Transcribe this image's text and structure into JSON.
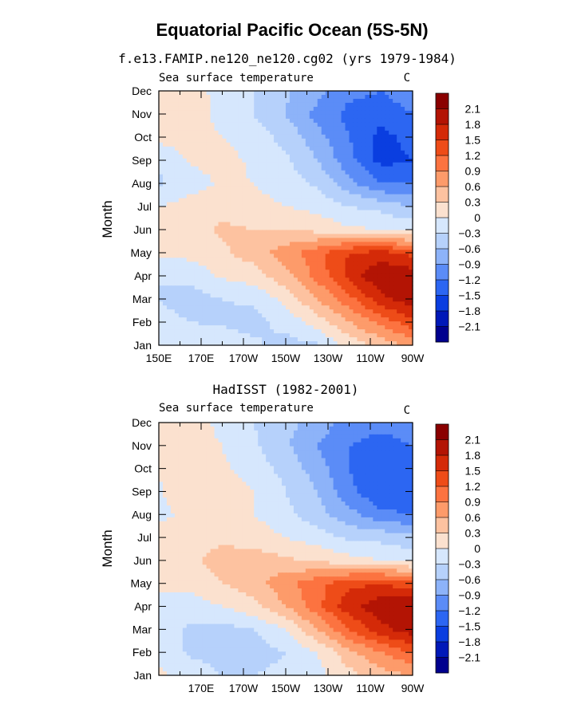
{
  "figure_title": "Equatorial Pacific Ocean (5S-5N)",
  "colors": {
    "palette": [
      "#00008e",
      "#0018b8",
      "#0a3ee0",
      "#2c66f2",
      "#5b8cf7",
      "#8db3f9",
      "#b6d1fb",
      "#d6e7fd",
      "#fbe1cf",
      "#fdc2a0",
      "#fd9b6a",
      "#fc7340",
      "#ee4c18",
      "#d42a08",
      "#b31404",
      "#8a0000"
    ]
  },
  "chart_data": [
    {
      "type": "heatmap",
      "title": "f.e13.FAMIP.ne120_ne120.cg02 (yrs 1979-1984)",
      "left_label": "Sea surface temperature",
      "units": "C",
      "ylabel": "Month",
      "xlabel": "",
      "x_tick_labels": [
        "150E",
        "170E",
        "170W",
        "150W",
        "130W",
        "110W",
        "90W"
      ],
      "x_range_deg_east": [
        150,
        270
      ],
      "y_tick_labels": [
        "Jan",
        "Feb",
        "Mar",
        "Apr",
        "May",
        "Jun",
        "Jul",
        "Aug",
        "Sep",
        "Oct",
        "Nov",
        "Dec"
      ],
      "contour_levels": [
        -2.1,
        -1.8,
        -1.5,
        -1.2,
        -0.9,
        -0.6,
        -0.3,
        0,
        0.3,
        0.6,
        0.9,
        1.2,
        1.5,
        1.8,
        2.1
      ],
      "colorbar_labels": [
        "2.1",
        "1.8",
        "1.5",
        "1.2",
        "0.9",
        "0.6",
        "0.3",
        "0",
        "−0.3",
        "−0.6",
        "−0.9",
        "−1.2",
        "−1.5",
        "−1.8",
        "−2.1"
      ],
      "x_grid_deg": [
        150,
        165,
        180,
        195,
        210,
        225,
        240,
        255,
        270
      ],
      "values": [
        [
          -0.1,
          -0.1,
          -0.1,
          -0.25,
          -0.4,
          -0.35,
          0.1,
          0.4,
          0.7
        ],
        [
          -0.2,
          -0.3,
          -0.35,
          -0.4,
          -0.2,
          0.15,
          0.6,
          1.0,
          1.4
        ],
        [
          -0.3,
          -0.45,
          -0.3,
          -0.25,
          0.1,
          0.6,
          1.1,
          1.7,
          2.0
        ],
        [
          -0.3,
          -0.2,
          0.05,
          0.15,
          0.5,
          1.0,
          1.6,
          2.1,
          2.0
        ],
        [
          0.05,
          0.1,
          0.25,
          0.45,
          0.75,
          1.1,
          1.5,
          1.6,
          1.4
        ],
        [
          0.1,
          0.2,
          0.35,
          0.3,
          0.3,
          0.2,
          0.05,
          0.0,
          -0.1
        ],
        [
          0.0,
          0.15,
          0.2,
          0.1,
          0.0,
          -0.1,
          -0.3,
          -0.4,
          -0.6
        ],
        [
          -0.35,
          -0.15,
          0.05,
          0.0,
          -0.15,
          -0.35,
          -0.8,
          -1.2,
          -1.2
        ],
        [
          -0.25,
          0.05,
          0.1,
          -0.05,
          -0.25,
          -0.6,
          -1.1,
          -1.6,
          -1.5
        ],
        [
          0.1,
          0.1,
          0.0,
          -0.15,
          -0.4,
          -0.8,
          -1.2,
          -1.6,
          -1.4
        ],
        [
          0.15,
          0.15,
          -0.1,
          -0.3,
          -0.6,
          -1.0,
          -1.3,
          -1.4,
          -1.2
        ],
        [
          0.2,
          0.25,
          -0.2,
          -0.3,
          -0.55,
          -0.8,
          -1.1,
          -1.2,
          -1.0
        ]
      ]
    },
    {
      "type": "heatmap",
      "title": "HadISST (1982-2001)",
      "left_label": "Sea surface temperature",
      "units": "C",
      "ylabel": "Month",
      "xlabel": "",
      "x_tick_labels": [
        "170E",
        "170W",
        "150W",
        "130W",
        "110W",
        "90W"
      ],
      "x_range_deg_east": [
        150,
        270
      ],
      "y_tick_labels": [
        "Jan",
        "Feb",
        "Mar",
        "Apr",
        "May",
        "Jun",
        "Jul",
        "Aug",
        "Sep",
        "Oct",
        "Nov",
        "Dec"
      ],
      "contour_levels": [
        -2.1,
        -1.8,
        -1.5,
        -1.2,
        -0.9,
        -0.6,
        -0.3,
        0,
        0.3,
        0.6,
        0.9,
        1.2,
        1.5,
        1.8,
        2.1
      ],
      "colorbar_labels": [
        "2.1",
        "1.8",
        "1.5",
        "1.2",
        "0.9",
        "0.6",
        "0.3",
        "0",
        "−0.3",
        "−0.6",
        "−0.9",
        "−1.2",
        "−1.5",
        "−1.8",
        "−2.1"
      ],
      "x_grid_deg": [
        150,
        165,
        180,
        195,
        210,
        225,
        240,
        255,
        270
      ],
      "values": [
        [
          0.05,
          -0.1,
          -0.3,
          -0.3,
          -0.2,
          -0.1,
          0.2,
          0.45,
          0.6
        ],
        [
          -0.1,
          -0.35,
          -0.45,
          -0.45,
          -0.3,
          0.0,
          0.5,
          0.9,
          1.2
        ],
        [
          -0.15,
          -0.35,
          -0.4,
          -0.3,
          0.0,
          0.6,
          1.2,
          1.7,
          2.0
        ],
        [
          -0.1,
          -0.15,
          0.0,
          0.2,
          0.6,
          1.1,
          1.7,
          2.0,
          2.1
        ],
        [
          0.05,
          0.1,
          0.3,
          0.5,
          0.8,
          1.1,
          1.4,
          1.5,
          1.3
        ],
        [
          0.15,
          0.25,
          0.4,
          0.45,
          0.35,
          0.25,
          0.1,
          0.0,
          -0.1
        ],
        [
          0.2,
          0.2,
          0.25,
          0.15,
          0.0,
          -0.15,
          -0.35,
          -0.4,
          -0.5
        ],
        [
          -0.1,
          0.1,
          0.15,
          0.0,
          -0.2,
          -0.5,
          -0.8,
          -1.1,
          -1.2
        ],
        [
          -0.05,
          0.3,
          0.15,
          0.0,
          -0.3,
          -0.6,
          -1.1,
          -1.5,
          -1.5
        ],
        [
          0.05,
          0.1,
          0.05,
          -0.15,
          -0.4,
          -0.75,
          -1.2,
          -1.5,
          -1.4
        ],
        [
          0.15,
          0.15,
          0.0,
          -0.25,
          -0.55,
          -0.9,
          -1.2,
          -1.35,
          -1.2
        ],
        [
          0.2,
          0.2,
          -0.1,
          -0.3,
          -0.5,
          -0.75,
          -1.0,
          -1.1,
          -1.0
        ]
      ]
    }
  ]
}
